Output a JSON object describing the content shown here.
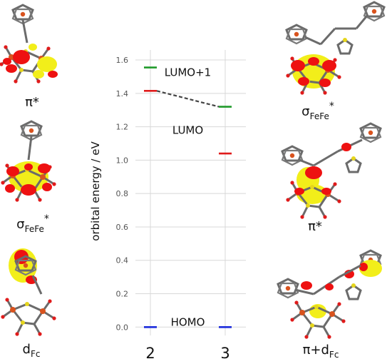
{
  "chart_data": {
    "type": "energy-level-diagram",
    "ylabel": "orbital energy / eV",
    "ylim": [
      -0.05,
      1.66
    ],
    "yticks": [
      "0.0",
      "0.2",
      "0.4",
      "0.6",
      "0.8",
      "1.0",
      "1.2",
      "1.4",
      "1.6"
    ],
    "categories": [
      "2",
      "3"
    ],
    "levels": [
      {
        "compound": "2",
        "orbital": "LUMO+1",
        "energy": 1.555,
        "color": "#1f9a2a"
      },
      {
        "compound": "2",
        "orbital": "LUMO",
        "energy": 1.415,
        "color": "#e01b1b"
      },
      {
        "compound": "2",
        "orbital": "HOMO",
        "energy": 0.0,
        "color": "#1c2cdc"
      },
      {
        "compound": "3",
        "orbital": "LUMO+1",
        "energy": 1.32,
        "color": "#1f9a2a"
      },
      {
        "compound": "3",
        "orbital": "LUMO",
        "energy": 1.04,
        "color": "#e01b1b"
      },
      {
        "compound": "3",
        "orbital": "HOMO",
        "energy": 0.0,
        "color": "#1c2cdc"
      }
    ],
    "connectors": [
      {
        "from": {
          "compound": "2",
          "energy": 1.415
        },
        "to": {
          "compound": "3",
          "energy": 1.32
        }
      }
    ],
    "level_labels": [
      {
        "text": "LUMO+1",
        "energy": 1.52,
        "color": "#1f9a2a"
      },
      {
        "text": "LUMO",
        "energy": 1.175,
        "color": "#e01b1b"
      },
      {
        "text": "HOMO",
        "energy": 0.025,
        "color": "#1c2cdc"
      }
    ]
  },
  "orbital_images": {
    "left": [
      {
        "caption": "π*",
        "sub": "",
        "sup": ""
      },
      {
        "caption": "σ",
        "sub": "FeFe",
        "sup": "*"
      },
      {
        "caption": "d",
        "sub": "Fc",
        "sup": ""
      }
    ],
    "right": [
      {
        "caption": "σ",
        "sub": "FeFe",
        "sup": "*"
      },
      {
        "caption": "π*",
        "sub": "",
        "sup": ""
      },
      {
        "caption": "π+d",
        "sub": "Fc",
        "sup": ""
      }
    ]
  },
  "colors": {
    "lobe_red": "#ee1111",
    "lobe_yellow": "#f2ee1a",
    "bond_grey": "#6b6b6b",
    "iron_orange": "#d9531e",
    "grid": "#d8d8d8",
    "connector": "#444444"
  }
}
